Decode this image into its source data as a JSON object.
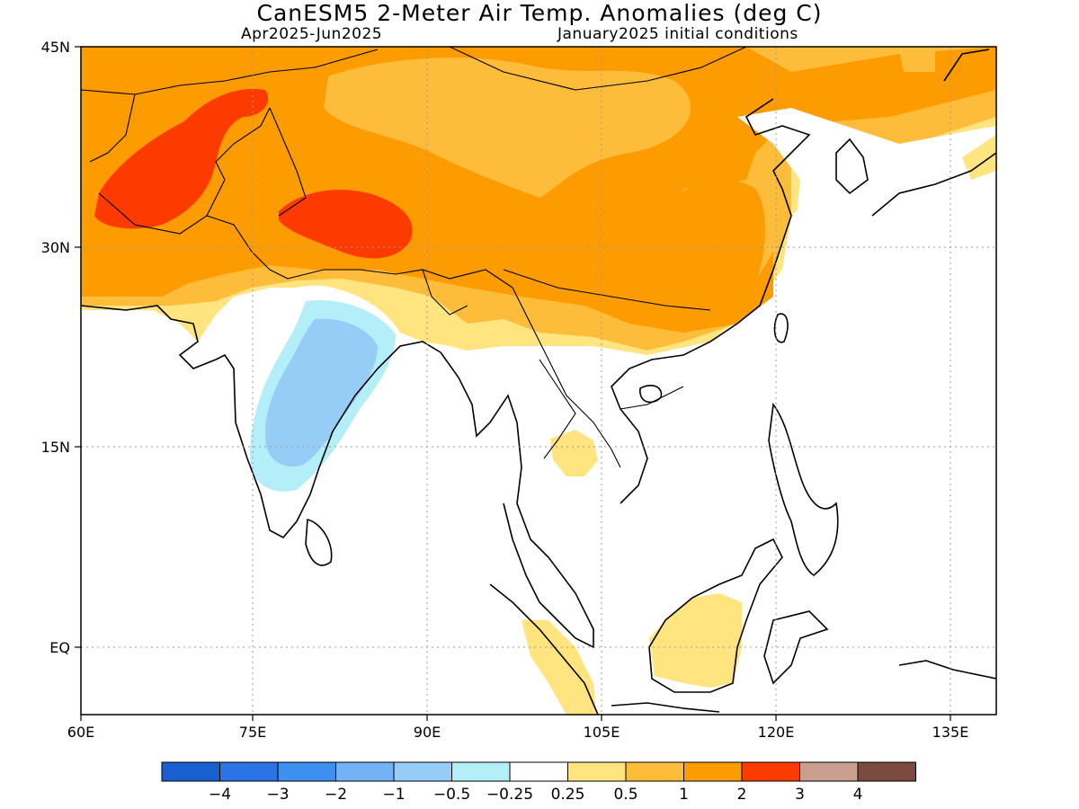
{
  "title": "CanESM5 2-Meter Air Temp. Anomalies (deg C)",
  "subtitle_left": "Apr2025-Jun2025",
  "subtitle_right": "January2025 initial conditions",
  "map": {
    "lon_range": [
      60,
      140
    ],
    "lat_range": [
      -6,
      45
    ],
    "lon_ticks": [
      "60E",
      "75E",
      "90E",
      "105E",
      "120E",
      "135E"
    ],
    "lat_ticks": [
      "45N",
      "30N",
      "15N",
      "EQ"
    ]
  },
  "colorbar": {
    "colors": [
      "#1a5fd0",
      "#2a74e6",
      "#3e90f0",
      "#72b2f5",
      "#96cdf7",
      "#b4eef8",
      "#ffffff",
      "#ffe480",
      "#fdbd3a",
      "#fd9c00",
      "#fd3a00",
      "#c9a090",
      "#7a4b3e"
    ],
    "labels": [
      "-4",
      "-3",
      "-2",
      "-1",
      "-0.5",
      "-0.25",
      "0.25",
      "0.5",
      "1",
      "2",
      "3",
      "4"
    ]
  }
}
